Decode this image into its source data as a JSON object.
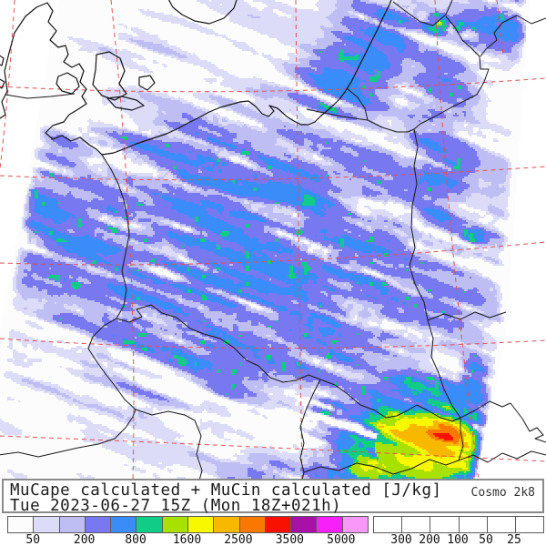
{
  "header": {
    "title_line1": "MuCape calculated + MuCin calculated [J/kg]",
    "title_line2": "Tue 2023-06-27 15Z (Mon 18Z+021h)",
    "model_label": "Cosmo 2k8"
  },
  "cape_colorbar": {
    "unit": "J/kg",
    "colors": [
      "#fcfcfc",
      "#dcdcf8",
      "#bebef4",
      "#7878f0",
      "#3a8cf8",
      "#10cc86",
      "#a8e000",
      "#f8f800",
      "#f8b800",
      "#f87800",
      "#f81000",
      "#a810a8",
      "#f820f8",
      "#f898f8"
    ],
    "tick_labels": [
      "50",
      "200",
      "800",
      "1600",
      "2500",
      "3500",
      "5000"
    ]
  },
  "mucin_bar": {
    "patterns": [
      "dense-crosshatch",
      "diagonal-crosshatch",
      "grid",
      "diagonal-lines",
      "dots",
      "blank"
    ],
    "tick_labels": [
      "300",
      "200",
      "100",
      "50",
      "25"
    ]
  }
}
